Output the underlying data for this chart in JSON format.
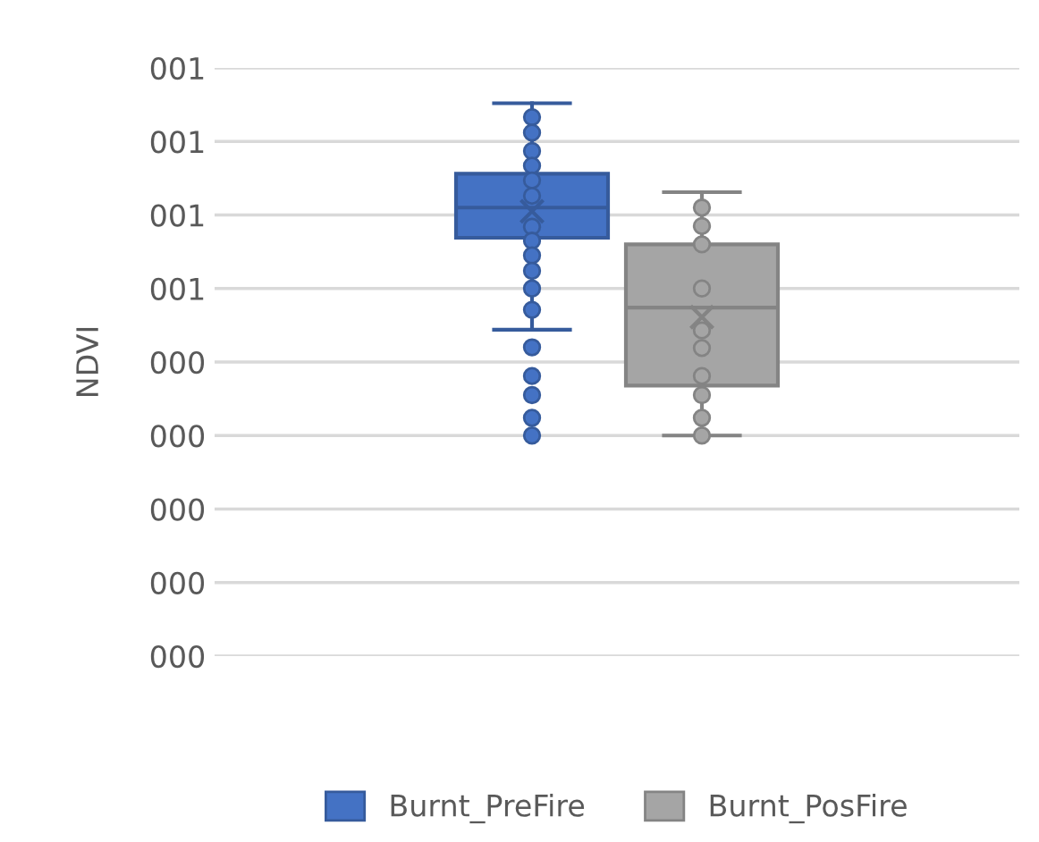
{
  "chart_data": {
    "type": "box",
    "ylabel": "NDVI",
    "categories": [
      null
    ],
    "ylim": [
      0,
      0.8
    ],
    "yticks": [
      {
        "value": 0,
        "label": "000"
      },
      {
        "value": 0.1,
        "label": "000"
      },
      {
        "value": 0.2,
        "label": "000"
      },
      {
        "value": 0.3,
        "label": "000"
      },
      {
        "value": 0.4,
        "label": "000"
      },
      {
        "value": 0.5,
        "label": "001"
      },
      {
        "value": 0.6,
        "label": "001"
      },
      {
        "value": 0.7,
        "label": "001"
      },
      {
        "value": 0.8,
        "label": "001"
      }
    ],
    "grid": "y",
    "legend": "bottom",
    "marker": "circle",
    "series": [
      {
        "name": "Burnt_PreFire",
        "color": "#4472c4",
        "boxes": [
          {
            "low": 0.444,
            "q1": 0.569,
            "median": 0.61,
            "q3": 0.656,
            "high": 0.752,
            "mean": 0.605,
            "outliers": [
              0.733,
              0.712,
              0.687,
              0.667,
              0.647,
              0.626,
              0.584,
              0.565,
              0.545,
              0.524,
              0.5,
              0.471,
              0.42,
              0.381,
              0.355,
              0.324,
              0.3
            ]
          }
        ]
      },
      {
        "name": "Burnt_PosFire",
        "color": "#a5a5a5",
        "boxes": [
          {
            "low": 0.3,
            "q1": 0.368,
            "median": 0.474,
            "q3": 0.56,
            "high": 0.631,
            "mean": 0.461,
            "outliers": [
              0.61,
              0.585,
              0.56,
              0.5,
              0.443,
              0.419,
              0.381,
              0.355,
              0.324,
              0.3
            ]
          }
        ]
      }
    ]
  }
}
